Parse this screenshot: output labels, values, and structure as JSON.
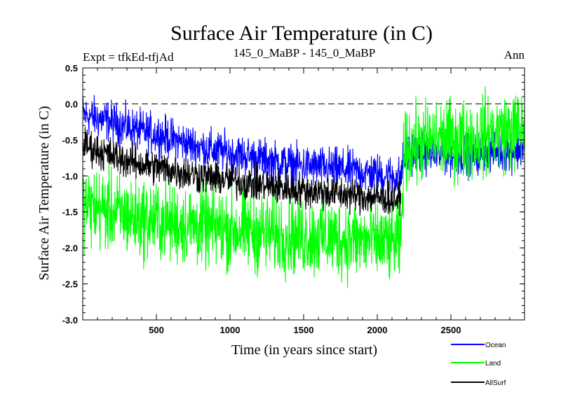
{
  "chart_data": {
    "type": "line",
    "title": "Surface Air Temperature (in C)",
    "subtitle_left": "Expt = tfkEd-tfjAd",
    "subtitle_center": "145_0_MaBP - 145_0_MaBP",
    "subtitle_right": "Ann",
    "xlabel": "Time (in years since start)",
    "ylabel": "Surface Air Temperature (in C)",
    "xlim": [
      0,
      3000
    ],
    "ylim": [
      -3.0,
      0.5
    ],
    "xticks": [
      500,
      1000,
      1500,
      2000,
      2500
    ],
    "xtick_labels": [
      "500",
      "1000",
      "1500",
      "2000",
      "2500"
    ],
    "yticks": [
      0.5,
      0.0,
      -0.5,
      -1.0,
      -1.5,
      -2.0,
      -2.5,
      -3.0
    ],
    "ytick_labels": [
      "0.5",
      "0.0",
      "-0.5",
      "-1.0",
      "-1.5",
      "-2.0",
      "-2.5",
      "-3.0"
    ],
    "reference_line": 0.0,
    "legend_position": "bottom-right, below plot",
    "series": [
      {
        "name": "Ocean",
        "color": "#0000ff",
        "x": [
          0,
          100,
          200,
          300,
          400,
          500,
          600,
          700,
          800,
          900,
          1000,
          1100,
          1200,
          1300,
          1400,
          1500,
          1600,
          1700,
          1800,
          1900,
          2000,
          2100,
          2160,
          2180,
          2200,
          2300,
          2400,
          2500,
          2600,
          2700,
          2800,
          2900,
          3000
        ],
        "values": [
          -0.15,
          -0.2,
          -0.25,
          -0.32,
          -0.38,
          -0.42,
          -0.48,
          -0.55,
          -0.6,
          -0.65,
          -0.68,
          -0.72,
          -0.76,
          -0.8,
          -0.84,
          -0.86,
          -0.88,
          -0.9,
          -0.92,
          -0.95,
          -0.98,
          -1.0,
          -1.02,
          -0.75,
          -0.65,
          -0.68,
          -0.7,
          -0.7,
          -0.72,
          -0.68,
          -0.65,
          -0.65,
          -0.62
        ]
      },
      {
        "name": "Land",
        "color": "#00ff00",
        "x": [
          0,
          100,
          200,
          300,
          400,
          500,
          600,
          700,
          800,
          900,
          1000,
          1100,
          1200,
          1300,
          1400,
          1500,
          1600,
          1700,
          1800,
          1900,
          2000,
          2100,
          2160,
          2180,
          2200,
          2300,
          2400,
          2500,
          2600,
          2700,
          2800,
          2900,
          3000
        ],
        "values": [
          -1.4,
          -1.45,
          -1.5,
          -1.55,
          -1.6,
          -1.62,
          -1.65,
          -1.68,
          -1.7,
          -1.72,
          -1.74,
          -1.76,
          -1.78,
          -1.8,
          -1.82,
          -1.84,
          -1.85,
          -1.86,
          -1.88,
          -1.9,
          -1.92,
          -1.93,
          -1.95,
          -0.75,
          -0.6,
          -0.55,
          -0.5,
          -0.5,
          -0.5,
          -0.45,
          -0.4,
          -0.38,
          -0.35
        ]
      },
      {
        "name": "AllSurf",
        "color": "#000000",
        "x": [
          0,
          100,
          200,
          300,
          400,
          500,
          600,
          700,
          800,
          900,
          1000,
          1100,
          1200,
          1300,
          1400,
          1500,
          1600,
          1700,
          1800,
          1900,
          2000,
          2100,
          2160
        ],
        "values": [
          -0.55,
          -0.65,
          -0.72,
          -0.78,
          -0.84,
          -0.88,
          -0.92,
          -0.96,
          -1.0,
          -1.03,
          -1.06,
          -1.09,
          -1.12,
          -1.15,
          -1.18,
          -1.2,
          -1.22,
          -1.24,
          -1.26,
          -1.28,
          -1.3,
          -1.32,
          -1.33
        ]
      }
    ]
  }
}
